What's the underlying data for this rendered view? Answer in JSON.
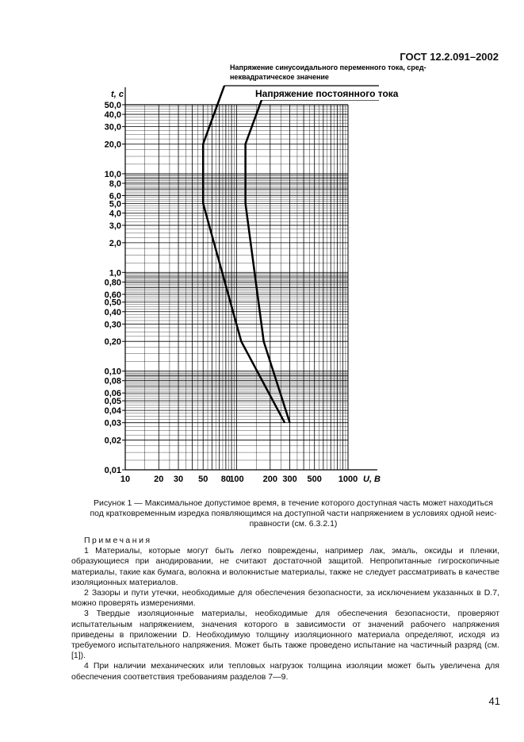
{
  "header": {
    "doc_code": "ГОСТ 12.2.091–2002"
  },
  "chart_data": {
    "type": "line",
    "xlabel": "U, В",
    "ylabel": "t, с",
    "xscale": "log",
    "yscale": "log",
    "xlim": [
      10,
      1000
    ],
    "ylim": [
      0.01,
      50
    ],
    "x_ticks": [
      "10",
      "20",
      "30",
      "50",
      "80",
      "100",
      "200",
      "300",
      "500",
      "1000"
    ],
    "x_tick_values": [
      10,
      20,
      30,
      50,
      80,
      100,
      200,
      300,
      500,
      1000
    ],
    "y_ticks": [
      "50,0",
      "40,0",
      "30,0",
      "20,0",
      "10,0",
      "8,0",
      "6,0",
      "5,0",
      "4,0",
      "3,0",
      "2,0",
      "1,0",
      "0,80",
      "0,60",
      "0,50",
      "0,40",
      "0,30",
      "0,20",
      "0,10",
      "0,08",
      "0,06",
      "0,05",
      "0,04",
      "0,03",
      "0,02",
      "0,01"
    ],
    "y_tick_values": [
      50,
      40,
      30,
      20,
      10,
      8,
      6,
      5,
      4,
      3,
      2,
      1,
      0.8,
      0.6,
      0.5,
      0.4,
      0.3,
      0.2,
      0.1,
      0.08,
      0.06,
      0.05,
      0.04,
      0.03,
      0.02,
      0.01
    ],
    "grid": true,
    "series": [
      {
        "name": "Напряжение синусоидального переменного тока, среднеквадратическое значение",
        "name_lines": [
          "Напряжение синусоидального переменного тока, сред-",
          "неквадратическое значение"
        ],
        "x": [
          50,
          50,
          110,
          270
        ],
        "y": [
          20,
          5,
          0.2,
          0.03
        ]
      },
      {
        "name": "Напряжение постоянного тока",
        "name_lines": [
          "Напряжение постоянного тока"
        ],
        "x": [
          120,
          120,
          175,
          300
        ],
        "y": [
          20,
          5,
          0.2,
          0.03
        ]
      }
    ]
  },
  "caption": {
    "lines": [
      "Рисунок 1 — Максимальное допустимое время, в течение которого доступная часть может находиться",
      "под кратковременным изредка появляющимся на доступной части напряжением в условиях одной неис-",
      "правности (см. 6.3.2.1)"
    ]
  },
  "notes": {
    "title": "Примечания",
    "items": [
      "1 Материалы, которые могут быть легко повреждены, например лак, эмаль, оксиды и пленки, образующиеся при анодировании, не считают достаточной защитой. Непропитанные гигроскопичные материалы, такие как бумага, волокна и волокнистые материалы, также не следует рассматривать в качестве изоляционных материалов.",
      "2 Зазоры и пути утечки, необходимые для обеспечения безопасности, за исключением указанных в D.7, можно проверять измерениями.",
      "3 Твердые изоляционные материалы, необходимые для обеспечения безопасности, проверяют испытательным напряжением, значения которого в зависимости от значений рабочего напряжения приведены в приложении D. Необходимую толщину изоляционного материала определяют, исходя из требуемого испытательного напряжения. Может быть также проведено испытание на частичный разряд (см. [1]).",
      "4 При наличии механических или тепловых нагрузок толщина изоляции может быть увеличена для обеспечения соответствия требованиям разделов 7—9."
    ]
  },
  "page_number": "41"
}
